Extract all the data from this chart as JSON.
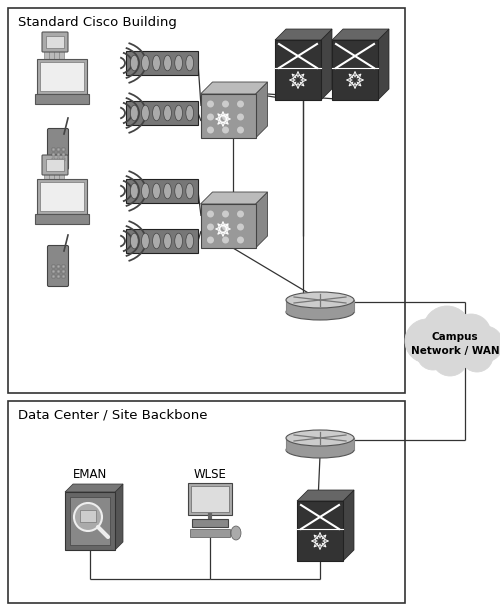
{
  "title": "Standard Cisco Building",
  "title2": "Data Center / Site Backbone",
  "cloud_label": "Campus\nNetwork / WAN",
  "eman_label": "EMAN",
  "wlse_label": "WLSE",
  "bg_color": "#ffffff",
  "figsize": [
    5.0,
    6.11
  ],
  "dpi": 100
}
